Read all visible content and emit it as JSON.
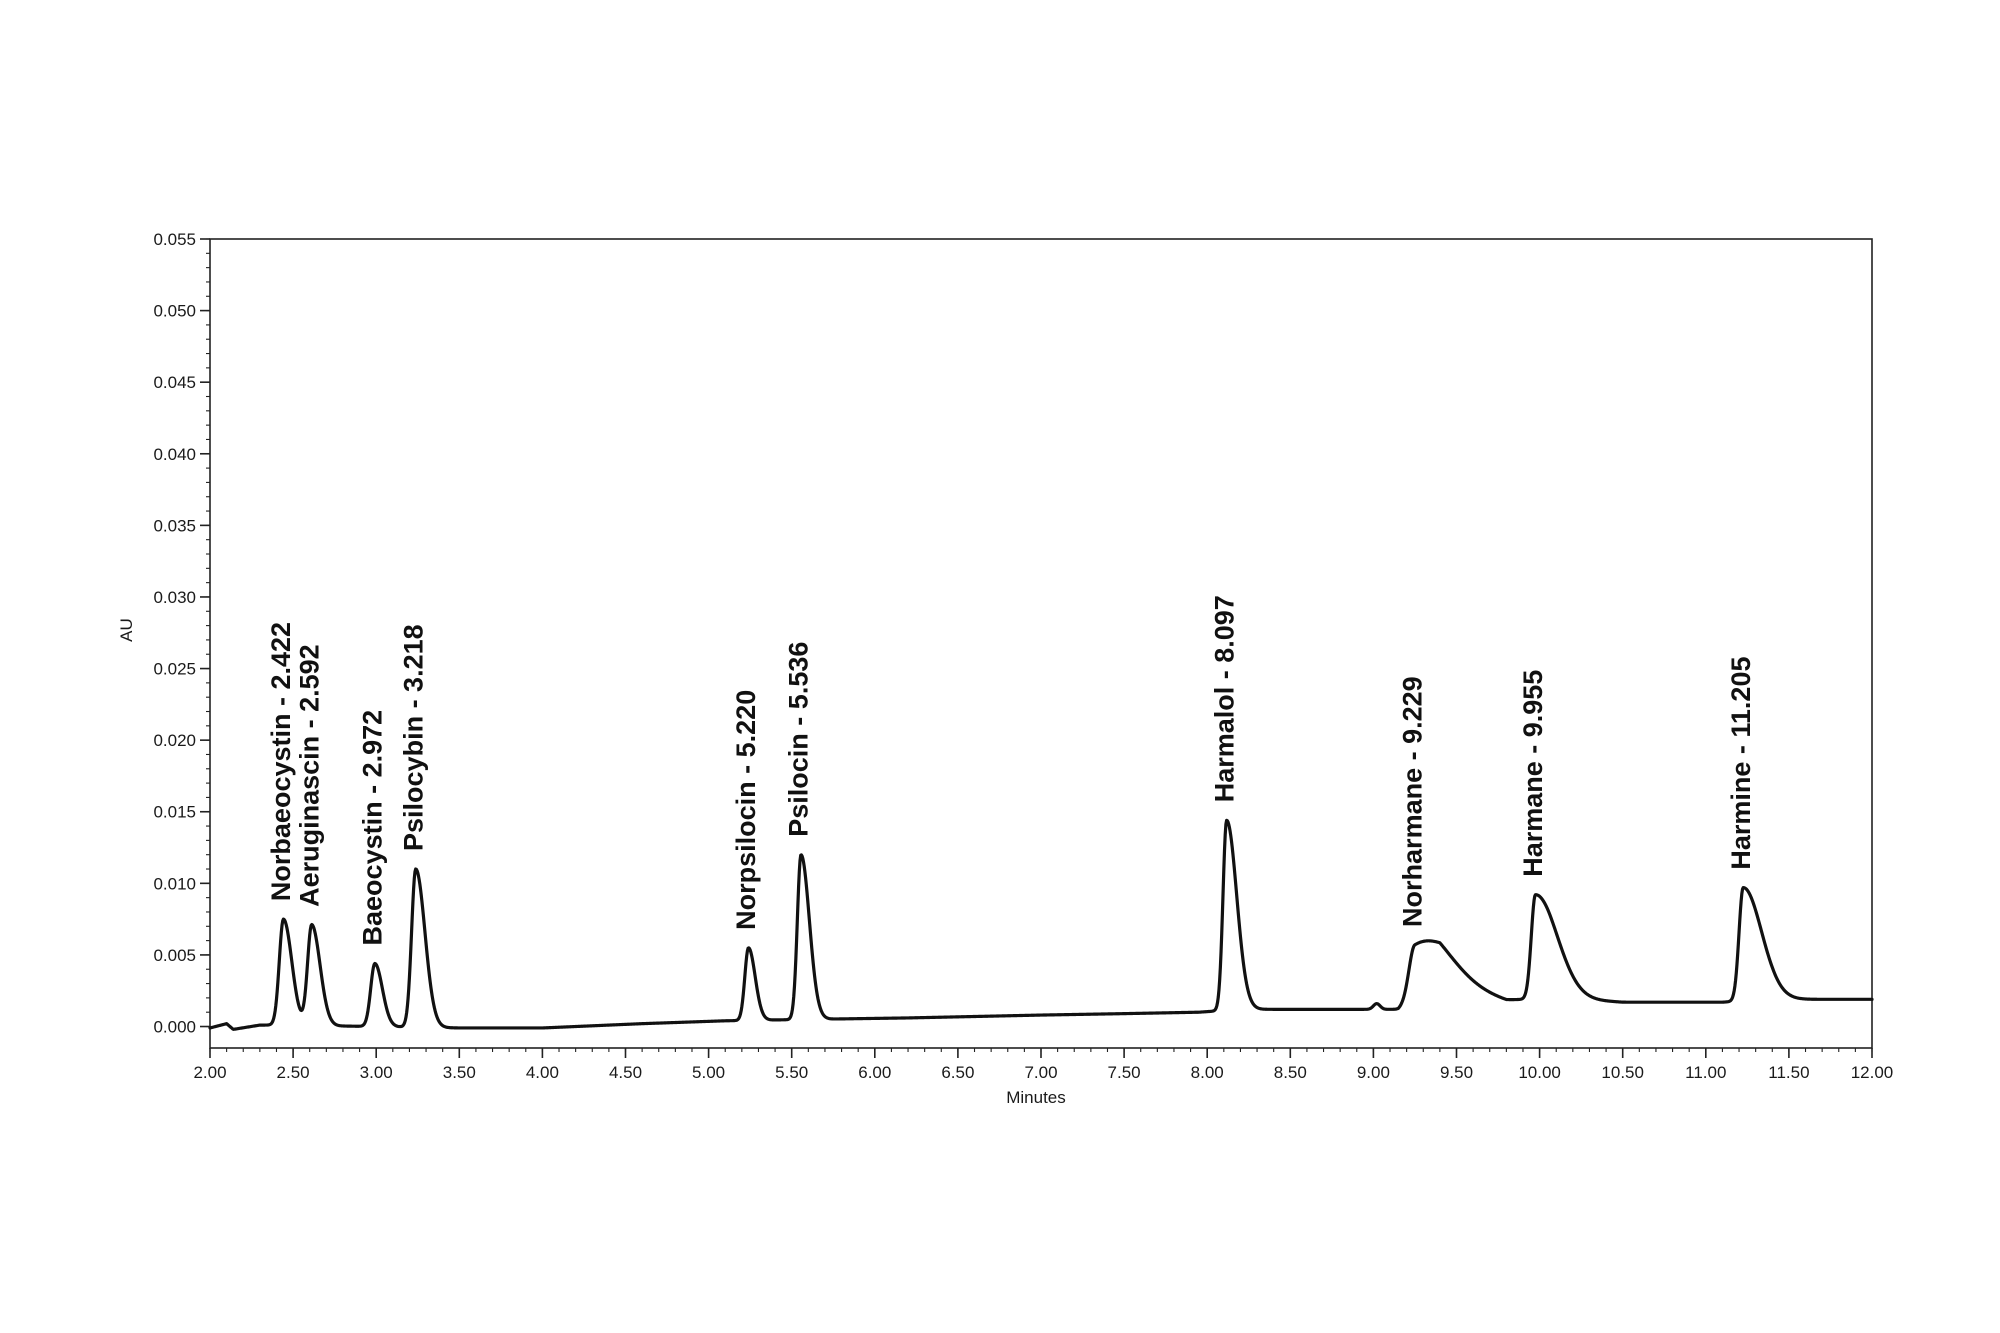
{
  "chart_data": {
    "type": "line",
    "title": "",
    "xlabel": "Minutes",
    "ylabel": "AU",
    "xlim": [
      2.0,
      12.0
    ],
    "ylim": [
      -0.0015,
      0.055
    ],
    "grid": false,
    "x_ticks": [
      2.0,
      2.5,
      3.0,
      3.5,
      4.0,
      4.5,
      5.0,
      5.5,
      6.0,
      6.5,
      7.0,
      7.5,
      8.0,
      8.5,
      9.0,
      9.5,
      10.0,
      10.5,
      11.0,
      11.5,
      12.0
    ],
    "x_tick_labels": [
      "2.00",
      "2.50",
      "3.00",
      "3.50",
      "4.00",
      "4.50",
      "5.00",
      "5.50",
      "6.00",
      "6.50",
      "7.00",
      "7.50",
      "8.00",
      "8.50",
      "9.00",
      "9.50",
      "10.00",
      "10.50",
      "11.00",
      "11.50",
      "12.00"
    ],
    "y_ticks": [
      0.0,
      0.005,
      0.01,
      0.015,
      0.02,
      0.025,
      0.03,
      0.035,
      0.04,
      0.045,
      0.05,
      0.055
    ],
    "y_tick_labels": [
      "0.000",
      "0.005",
      "0.010",
      "0.015",
      "0.020",
      "0.025",
      "0.030",
      "0.035",
      "0.040",
      "0.045",
      "0.050",
      "0.055"
    ],
    "color": "#111111",
    "peaks": [
      {
        "name": "Norbaeocystin",
        "rt": 2.422,
        "label": "Norbaeocystin - 2.422",
        "height": 0.0075
      },
      {
        "name": "Aeruginascin",
        "rt": 2.592,
        "label": "Aeruginascin - 2.592",
        "height": 0.0071
      },
      {
        "name": "Baeocystin",
        "rt": 2.972,
        "label": "Baeocystin - 2.972",
        "height": 0.0044
      },
      {
        "name": "Psilocybin",
        "rt": 3.218,
        "label": "Psilocybin - 3.218",
        "height": 0.011
      },
      {
        "name": "Norpsilocin",
        "rt": 5.22,
        "label": "Norpsilocin - 5.220",
        "height": 0.0055
      },
      {
        "name": "Psilocin",
        "rt": 5.536,
        "label": "Psilocin - 5.536",
        "height": 0.012
      },
      {
        "name": "Harmalol",
        "rt": 8.097,
        "label": "Harmalol - 8.097",
        "height": 0.0144
      },
      {
        "name": "Norharmane",
        "rt": 9.229,
        "label": "Norharmane - 9.229",
        "height": 0.0057
      },
      {
        "name": "Harmane",
        "rt": 9.955,
        "label": "Harmane - 9.955",
        "height": 0.0092
      },
      {
        "name": "Harmine",
        "rt": 11.205,
        "label": "Harmine - 11.205",
        "height": 0.0097
      }
    ]
  }
}
